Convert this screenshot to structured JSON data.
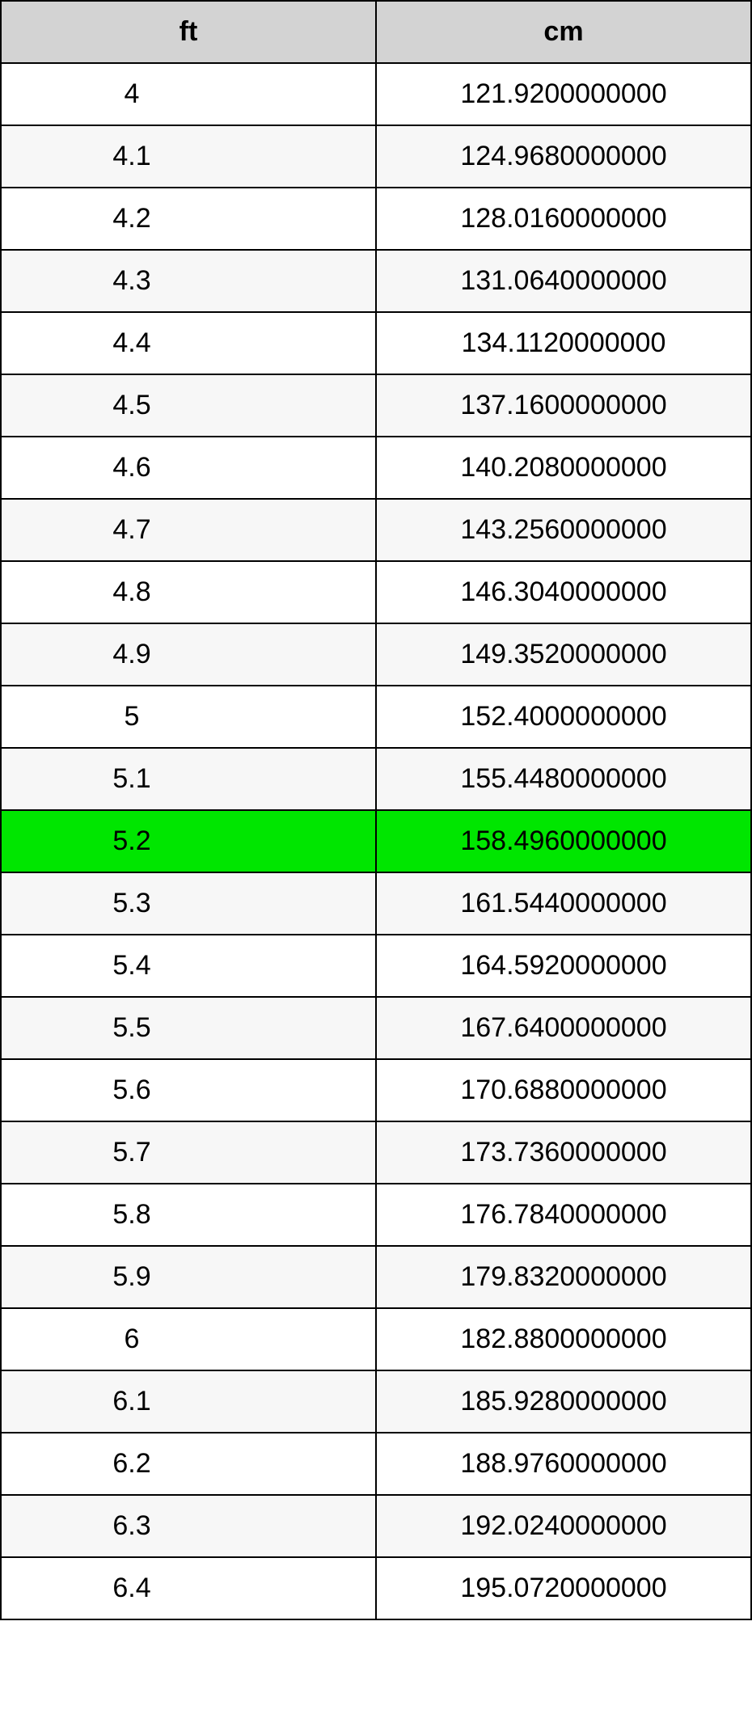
{
  "table": {
    "columns": [
      {
        "label": "ft"
      },
      {
        "label": "cm"
      }
    ],
    "highlight_index": 12,
    "highlight_color": "#00e600",
    "header_bg": "#d3d3d3",
    "row_bg_odd": "#ffffff",
    "row_bg_even": "#f7f7f7",
    "border_color": "#000000",
    "font_size": 34,
    "rows": [
      {
        "ft": "4",
        "cm": "121.9200000000"
      },
      {
        "ft": "4.1",
        "cm": "124.9680000000"
      },
      {
        "ft": "4.2",
        "cm": "128.0160000000"
      },
      {
        "ft": "4.3",
        "cm": "131.0640000000"
      },
      {
        "ft": "4.4",
        "cm": "134.1120000000"
      },
      {
        "ft": "4.5",
        "cm": "137.1600000000"
      },
      {
        "ft": "4.6",
        "cm": "140.2080000000"
      },
      {
        "ft": "4.7",
        "cm": "143.2560000000"
      },
      {
        "ft": "4.8",
        "cm": "146.3040000000"
      },
      {
        "ft": "4.9",
        "cm": "149.3520000000"
      },
      {
        "ft": "5",
        "cm": "152.4000000000"
      },
      {
        "ft": "5.1",
        "cm": "155.4480000000"
      },
      {
        "ft": "5.2",
        "cm": "158.4960000000"
      },
      {
        "ft": "5.3",
        "cm": "161.5440000000"
      },
      {
        "ft": "5.4",
        "cm": "164.5920000000"
      },
      {
        "ft": "5.5",
        "cm": "167.6400000000"
      },
      {
        "ft": "5.6",
        "cm": "170.6880000000"
      },
      {
        "ft": "5.7",
        "cm": "173.7360000000"
      },
      {
        "ft": "5.8",
        "cm": "176.7840000000"
      },
      {
        "ft": "5.9",
        "cm": "179.8320000000"
      },
      {
        "ft": "6",
        "cm": "182.8800000000"
      },
      {
        "ft": "6.1",
        "cm": "185.9280000000"
      },
      {
        "ft": "6.2",
        "cm": "188.9760000000"
      },
      {
        "ft": "6.3",
        "cm": "192.0240000000"
      },
      {
        "ft": "6.4",
        "cm": "195.0720000000"
      }
    ]
  }
}
